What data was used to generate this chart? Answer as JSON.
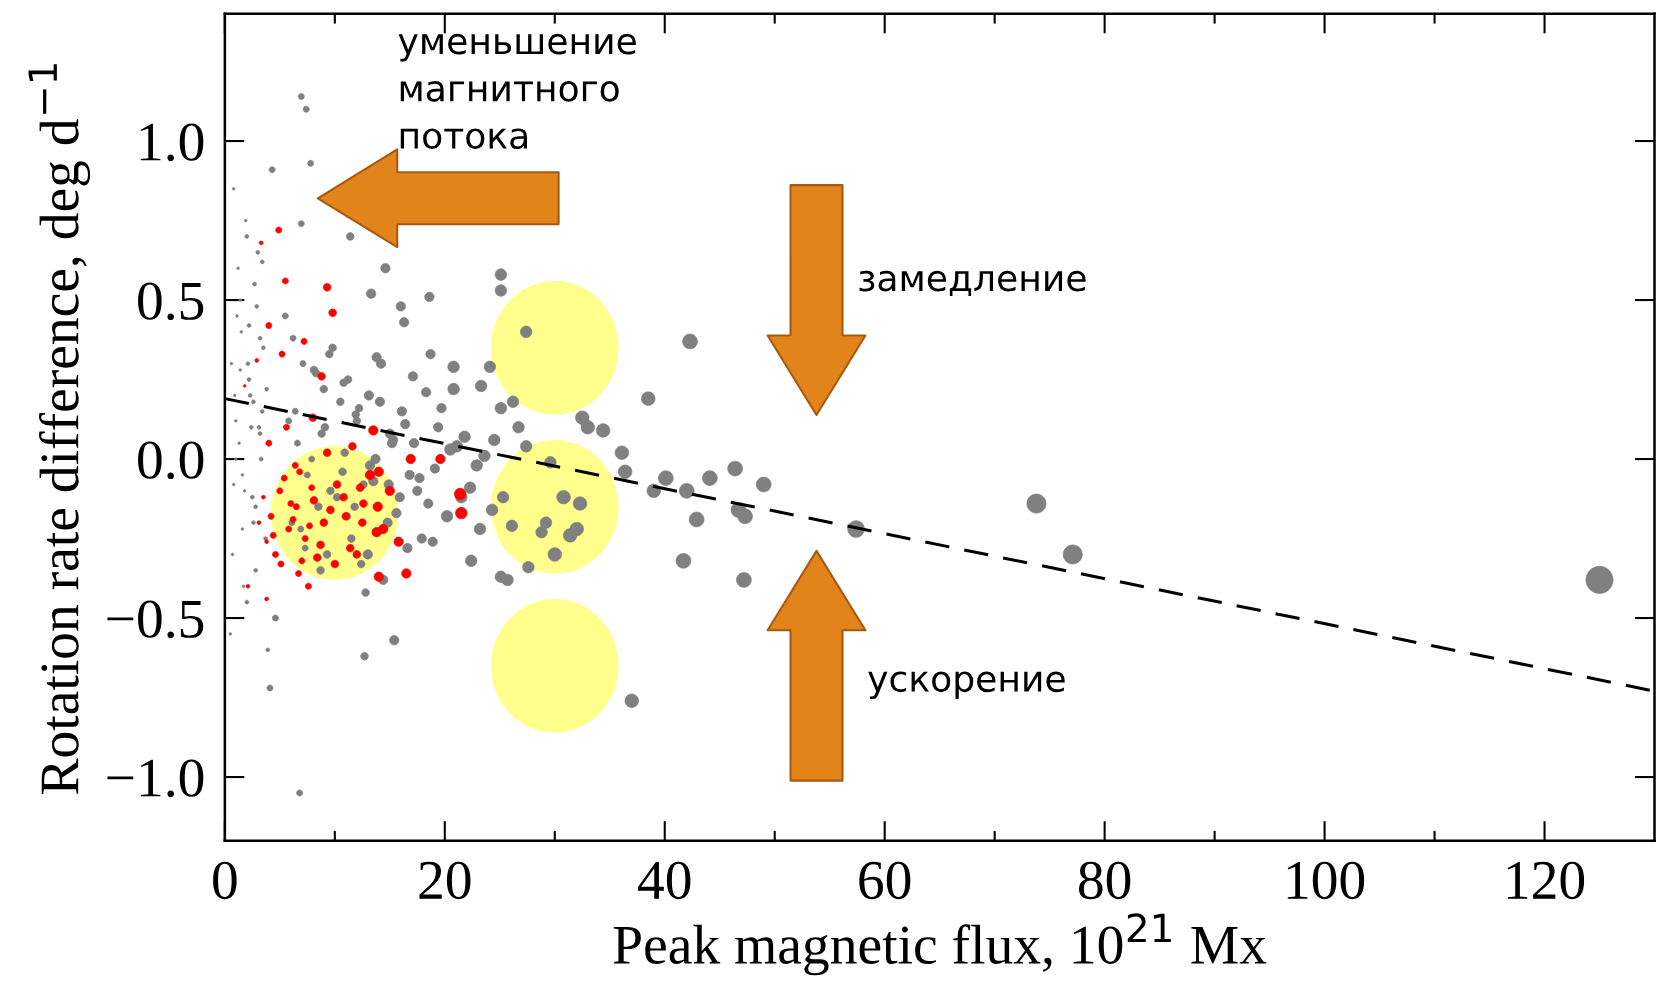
{
  "chart_data": {
    "type": "bubble",
    "xlabel": "Peak magnetic flux, 10$^{21}$ Mx",
    "ylabel": "Rotation rate difference, deg d$^{−1}$",
    "xlim": [
      0,
      130
    ],
    "ylim": [
      -1.2,
      1.4
    ],
    "xticks": [
      0,
      20,
      40,
      60,
      80,
      100,
      120
    ],
    "yticks": [
      {
        "value": -1.0,
        "label": "−1.0"
      },
      {
        "value": -0.5,
        "label": "−0.5"
      },
      {
        "value": 0.0,
        "label": "0.0"
      },
      {
        "value": 0.5,
        "label": "0.5"
      },
      {
        "value": 1.0,
        "label": "1.0"
      }
    ],
    "grid": false,
    "legend": false,
    "marker": "circle",
    "annotations": [
      "уменьшение\nмагнитного\nпотока",
      "замедление",
      "ускорение"
    ],
    "series": [
      {
        "color": "#808080",
        "x": [
          6.95,
          7.4,
          7.8,
          4.3,
          6.95,
          11.4,
          14.6,
          13.3,
          16,
          18.6,
          25.1,
          25.1,
          27.4,
          42.3,
          16.3,
          18.7,
          20.8,
          24.1,
          23.3,
          26.2,
          25.1,
          26.7,
          27.4,
          32.5,
          33,
          34.4,
          36.1,
          38.5,
          36.4,
          39,
          40.1,
          42,
          44.1,
          46.4,
          49,
          46.7,
          47.3,
          42.9,
          41.7,
          47.2,
          57.4,
          73.8,
          77.1,
          125,
          37,
          29.6,
          30.8,
          32.3,
          29.2,
          31.4,
          32,
          28.8,
          30,
          27.6,
          26.1,
          25.3,
          24.3,
          25.1,
          25.7,
          22.4,
          21.5,
          12.8,
          12.7,
          15.4,
          6.8,
          4.1,
          4.6,
          5.5,
          6.2,
          7.1,
          8.3,
          9.0,
          9.8,
          10.5,
          11.2,
          12.0,
          13.1,
          14.2,
          15.0,
          16.1,
          17.2,
          18.3,
          19.4,
          20.5,
          21.8,
          22.9,
          23.6,
          5.8,
          6.6,
          7.5,
          8.8,
          9.6,
          10.9,
          11.8,
          12.6,
          13.7,
          14.8,
          15.9,
          16.8,
          17.9,
          19.1,
          20.2,
          21.1,
          22.3,
          23.2,
          24.5,
          6.1,
          7.3,
          8.5,
          9.3,
          10.2,
          11.5,
          12.4,
          13.5,
          14.4,
          15.6,
          16.6,
          17.5,
          18.9,
          6.4,
          7.9,
          9.1,
          10.7,
          11.9,
          13.2,
          14.1,
          15.3,
          16.4,
          17.7,
          19.7,
          8.1,
          9.5,
          10.8,
          12.2,
          13.8,
          15.2,
          17.1,
          18.5,
          20.8,
          6.9,
          8.7,
          11.1,
          13.0,
          14.9,
          0.8,
          1.2,
          1.5,
          1.9,
          2.3,
          2.7,
          3.1,
          3.5,
          0.6,
          1.0,
          1.4,
          1.8,
          2.2,
          2.6,
          3.0,
          3.4,
          0.7,
          1.1,
          1.6,
          2.0,
          2.4,
          2.8,
          3.2,
          3.7,
          0.9,
          1.3,
          1.7,
          2.1,
          2.5,
          2.9,
          3.3,
          3.8,
          0.5,
          1.0,
          1.6,
          2.2,
          2.8,
          3.4,
          0.8,
          1.4,
          2.0,
          2.6,
          3.2,
          3.9
        ],
        "values": [
          1.14,
          1.1,
          0.93,
          0.91,
          0.74,
          0.7,
          0.6,
          0.52,
          0.48,
          0.51,
          0.58,
          0.53,
          0.4,
          0.37,
          0.43,
          0.33,
          0.29,
          0.29,
          0.23,
          0.18,
          0.16,
          0.1,
          0.04,
          0.13,
          0.1,
          0.09,
          0.02,
          0.19,
          -0.04,
          -0.1,
          -0.06,
          -0.1,
          -0.06,
          -0.03,
          -0.08,
          -0.16,
          -0.18,
          -0.19,
          -0.32,
          -0.38,
          -0.22,
          -0.14,
          -0.3,
          -0.38,
          -0.76,
          -0.01,
          -0.12,
          -0.14,
          -0.2,
          -0.24,
          -0.22,
          -0.23,
          -0.3,
          -0.34,
          -0.21,
          -0.12,
          -0.16,
          -0.37,
          -0.38,
          -0.32,
          -0.12,
          -0.42,
          -0.62,
          -0.57,
          -1.05,
          -0.72,
          -0.5,
          0.45,
          0.38,
          0.3,
          0.27,
          0.22,
          0.35,
          0.18,
          0.25,
          0.12,
          0.2,
          0.3,
          0.08,
          0.15,
          0.05,
          0.21,
          0.1,
          0.03,
          0.07,
          -0.02,
          0.01,
          0.12,
          0.05,
          -0.05,
          0.08,
          -0.1,
          0.02,
          -0.15,
          -0.08,
          0.0,
          -0.2,
          -0.12,
          -0.05,
          -0.25,
          -0.03,
          -0.18,
          0.04,
          -0.09,
          -0.22,
          0.06,
          -0.2,
          -0.28,
          -0.15,
          -0.3,
          -0.12,
          -0.25,
          -0.33,
          -0.07,
          -0.38,
          -0.17,
          -0.28,
          -0.1,
          -0.26,
          0.15,
          0.0,
          0.1,
          -0.04,
          0.14,
          -0.02,
          0.18,
          0.06,
          0.11,
          -0.06,
          0.16,
          0.28,
          0.33,
          0.24,
          0.16,
          0.32,
          0.05,
          0.26,
          -0.14,
          0.22,
          -0.22,
          -0.35,
          -0.18,
          -0.3,
          -0.08,
          0.85,
          0.6,
          0.4,
          0.75,
          0.2,
          0.55,
          0.1,
          0.35,
          0.3,
          0.0,
          0.5,
          -0.1,
          0.25,
          -0.2,
          0.65,
          0.15,
          -0.3,
          0.45,
          -0.05,
          0.7,
          0.1,
          -0.15,
          0.38,
          -0.25,
          0.2,
          0.05,
          -0.4,
          0.3,
          -0.12,
          0.48,
          0.0,
          0.22,
          -0.55,
          0.12,
          -0.22,
          0.42,
          -0.35,
          0.62,
          -0.08,
          0.28,
          -0.45,
          0.18,
          0.08,
          -0.6
        ],
        "sizes": [
          0.05,
          0.05,
          0.05,
          0.05,
          0.05,
          0.08,
          0.12,
          0.12,
          0.12,
          0.12,
          0.18,
          0.18,
          0.18,
          0.3,
          0.12,
          0.12,
          0.18,
          0.18,
          0.18,
          0.18,
          0.18,
          0.18,
          0.18,
          0.25,
          0.25,
          0.25,
          0.25,
          0.25,
          0.25,
          0.25,
          0.3,
          0.3,
          0.3,
          0.3,
          0.3,
          0.3,
          0.3,
          0.3,
          0.3,
          0.3,
          0.38,
          0.5,
          0.5,
          1,
          0.25,
          0.18,
          0.25,
          0.25,
          0.18,
          0.25,
          0.25,
          0.18,
          0.25,
          0.18,
          0.18,
          0.18,
          0.18,
          0.18,
          0.18,
          0.18,
          0.18,
          0.08,
          0.08,
          0.12,
          0.05,
          0.05,
          0.05,
          0.05,
          0.05,
          0.05,
          0.08,
          0.08,
          0.08,
          0.08,
          0.08,
          0.08,
          0.12,
          0.12,
          0.12,
          0.12,
          0.12,
          0.12,
          0.12,
          0.18,
          0.18,
          0.18,
          0.18,
          0.05,
          0.05,
          0.05,
          0.08,
          0.08,
          0.08,
          0.08,
          0.08,
          0.12,
          0.12,
          0.12,
          0.12,
          0.12,
          0.12,
          0.18,
          0.18,
          0.18,
          0.18,
          0.18,
          0.05,
          0.05,
          0.08,
          0.08,
          0.08,
          0.08,
          0.08,
          0.12,
          0.12,
          0.12,
          0.12,
          0.12,
          0.12,
          0.05,
          0.05,
          0.08,
          0.08,
          0.08,
          0.12,
          0.12,
          0.12,
          0.12,
          0.12,
          0.12,
          0.08,
          0.08,
          0.08,
          0.08,
          0.12,
          0.12,
          0.12,
          0.12,
          0.18,
          0.05,
          0.08,
          0.08,
          0.12,
          0.12,
          0.01,
          0.01,
          0.01,
          0.01,
          0.02,
          0.02,
          0.02,
          0.02,
          0.01,
          0.01,
          0.01,
          0.01,
          0.02,
          0.02,
          0.02,
          0.02,
          0.01,
          0.01,
          0.01,
          0.02,
          0.02,
          0.02,
          0.02,
          0.02,
          0.01,
          0.01,
          0.01,
          0.02,
          0.02,
          0.02,
          0.02,
          0.02,
          0.01,
          0.01,
          0.01,
          0.02,
          0.02,
          0.02,
          0.01,
          0.01,
          0.02,
          0.02,
          0.02,
          0.02
        ]
      },
      {
        "color": "#ff0000",
        "x": [
          4.9,
          3.3,
          5.5,
          9.3,
          4,
          9.8,
          7.2,
          5.2,
          8.8,
          2.9,
          1.8,
          13.5,
          16.9,
          19.6,
          21.4,
          21.5,
          14,
          12.5,
          16.5,
          14,
          7.6,
          6.7,
          3.8,
          2.1,
          3.5,
          4.2,
          5.0,
          5.8,
          6.5,
          7.3,
          8.1,
          9.0,
          10.2,
          11.4,
          12.6,
          13.8,
          15.0,
          3.8,
          4.6,
          5.4,
          6.2,
          7.0,
          7.9,
          8.7,
          9.6,
          10.8,
          12.0,
          13.2,
          14.4,
          15.8,
          3.1,
          4.4,
          5.1,
          6.0,
          6.8,
          7.7,
          8.4,
          9.3,
          11.0,
          12.3,
          13.9,
          4.0,
          5.6,
          6.4,
          8.0,
          10.0,
          11.6
        ],
        "values": [
          0.72,
          0.68,
          0.56,
          0.54,
          0.42,
          0.46,
          0.37,
          0.33,
          0.26,
          0.31,
          0.23,
          0.09,
          0.0,
          0.0,
          -0.11,
          -0.17,
          -0.04,
          -0.2,
          -0.36,
          -0.37,
          -0.4,
          -0.36,
          -0.44,
          -0.4,
          -0.12,
          -0.18,
          -0.1,
          -0.22,
          -0.15,
          -0.25,
          -0.13,
          -0.2,
          -0.08,
          -0.28,
          -0.14,
          -0.23,
          -0.1,
          -0.26,
          -0.3,
          -0.06,
          -0.19,
          -0.32,
          -0.09,
          -0.27,
          -0.16,
          -0.12,
          -0.3,
          -0.05,
          -0.22,
          -0.26,
          -0.2,
          -0.24,
          -0.33,
          -0.14,
          -0.04,
          -0.21,
          -0.31,
          0.02,
          -0.18,
          -0.09,
          -0.15,
          0.05,
          0.1,
          -0.02,
          0.13,
          -0.33,
          0.04
        ],
        "sizes": [
          0.05,
          0.02,
          0.05,
          0.08,
          0.05,
          0.08,
          0.05,
          0.05,
          0.08,
          0.02,
          0.01,
          0.12,
          0.12,
          0.12,
          0.18,
          0.18,
          0.12,
          0.08,
          0.12,
          0.12,
          0.05,
          0.05,
          0.02,
          0.02,
          0.02,
          0.05,
          0.05,
          0.05,
          0.05,
          0.05,
          0.08,
          0.08,
          0.08,
          0.08,
          0.08,
          0.12,
          0.12,
          0.02,
          0.05,
          0.05,
          0.05,
          0.05,
          0.05,
          0.08,
          0.08,
          0.08,
          0.08,
          0.12,
          0.12,
          0.12,
          0.02,
          0.05,
          0.05,
          0.05,
          0.05,
          0.05,
          0.08,
          0.08,
          0.08,
          0.08,
          0.12,
          0.05,
          0.05,
          0.05,
          0.08,
          0.08,
          0.08
        ]
      },
      {
        "type": "line",
        "color": "#000000",
        "line_style": "dashed",
        "marker": "none",
        "x": [
          0,
          130
        ],
        "values": [
          0.19,
          -0.73
        ]
      }
    ]
  }
}
